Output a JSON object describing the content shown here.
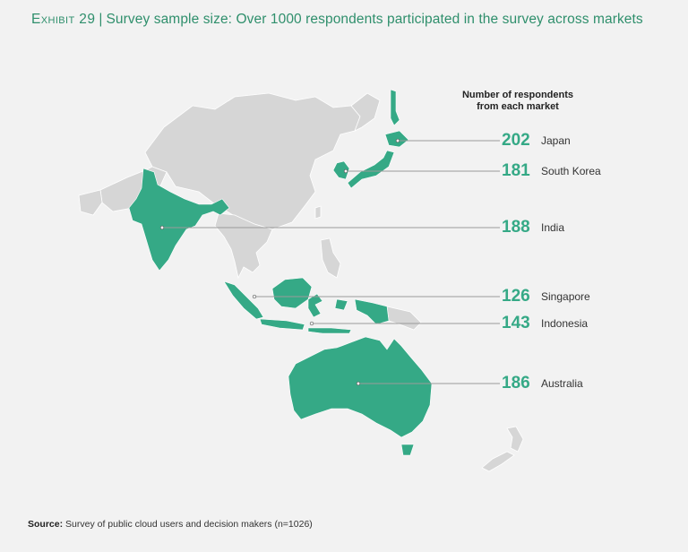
{
  "header": {
    "exhibit_label": "Exhibit 29",
    "separator": "|",
    "title": "Survey sample size: Over 1000 respondents participated in the survey across markets"
  },
  "legend": {
    "title_line1": "Number of respondents",
    "title_line2": "from each market"
  },
  "markets": [
    {
      "country": "Japan",
      "respondents": "202"
    },
    {
      "country": "South Korea",
      "respondents": "181"
    },
    {
      "country": "India",
      "respondents": "188"
    },
    {
      "country": "Singapore",
      "respondents": "126"
    },
    {
      "country": "Indonesia",
      "respondents": "143"
    },
    {
      "country": "Australia",
      "respondents": "186"
    }
  ],
  "source": {
    "label": "Source:",
    "text": "Survey of public cloud users and decision makers (n=1026)"
  },
  "colors": {
    "highlight": "#35a986",
    "land": "#d6d6d6",
    "background": "#f2f2f2",
    "title": "#2f8f6c"
  }
}
